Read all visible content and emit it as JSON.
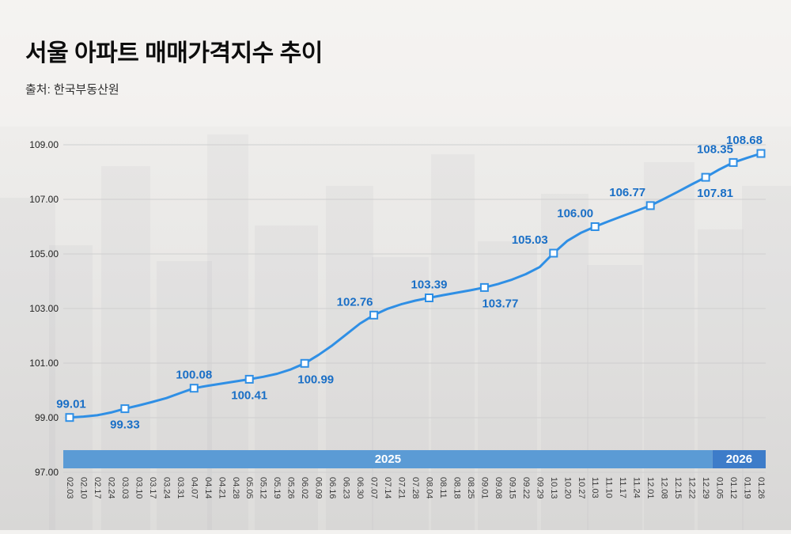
{
  "header": {
    "title": "서울 아파트 매매가격지수 추이",
    "source": "출처: 한국부동산원"
  },
  "chart_data": {
    "type": "line",
    "title": "서울 아파트 매매가격지수 추이",
    "xlabel": "",
    "ylabel": "",
    "ylim": [
      97,
      109
    ],
    "grid": true,
    "legend_position": "none",
    "yticks": [
      97,
      99,
      101,
      103,
      105,
      107,
      109
    ],
    "ytick_labels": [
      "97.00",
      "99.00",
      "101.00",
      "103.00",
      "105.00",
      "107.00",
      "109.00"
    ],
    "x": [
      "02.03",
      "02.10",
      "02.17",
      "02.24",
      "03.03",
      "03.10",
      "03.17",
      "03.24",
      "03.31",
      "04.07",
      "04.14",
      "04.21",
      "04.28",
      "05.05",
      "05.12",
      "05.19",
      "05.26",
      "06.02",
      "06.09",
      "06.16",
      "06.23",
      "06.30",
      "07.07",
      "07.14",
      "07.21",
      "07.28",
      "08.04",
      "08.11",
      "08.18",
      "08.25",
      "09.01",
      "09.08",
      "09.15",
      "09.22",
      "09.29",
      "10.13",
      "10.20",
      "10.27",
      "11.03",
      "11.10",
      "11.17",
      "11.24",
      "12.01",
      "12.08",
      "12.15",
      "12.22",
      "12.29",
      "01.05",
      "01.12",
      "01.19",
      "01.26"
    ],
    "values": [
      99.01,
      99.04,
      99.09,
      99.19,
      99.33,
      99.45,
      99.58,
      99.72,
      99.9,
      100.08,
      100.17,
      100.25,
      100.33,
      100.41,
      100.5,
      100.61,
      100.77,
      100.99,
      101.3,
      101.65,
      102.05,
      102.45,
      102.76,
      102.99,
      103.16,
      103.29,
      103.39,
      103.49,
      103.58,
      103.67,
      103.77,
      103.9,
      104.06,
      104.26,
      104.52,
      105.03,
      105.48,
      105.78,
      106.0,
      106.2,
      106.39,
      106.58,
      106.77,
      107.02,
      107.28,
      107.55,
      107.81,
      108.1,
      108.35,
      108.52,
      108.68
    ],
    "labeled_points": [
      {
        "index": 0,
        "label": "99.01",
        "value": 99.01,
        "position": "above",
        "dx": 2
      },
      {
        "index": 4,
        "label": "99.33",
        "value": 99.33,
        "position": "below",
        "dx": 0
      },
      {
        "index": 9,
        "label": "100.08",
        "value": 100.08,
        "position": "above",
        "dx": 0
      },
      {
        "index": 13,
        "label": "100.41",
        "value": 100.41,
        "position": "below",
        "dx": 0
      },
      {
        "index": 17,
        "label": "100.99",
        "value": 100.99,
        "position": "below",
        "dx": 14
      },
      {
        "index": 22,
        "label": "102.76",
        "value": 102.76,
        "position": "above",
        "dx": -24
      },
      {
        "index": 26,
        "label": "103.39",
        "value": 103.39,
        "position": "above",
        "dx": 0
      },
      {
        "index": 30,
        "label": "103.77",
        "value": 103.77,
        "position": "below",
        "dx": 20
      },
      {
        "index": 35,
        "label": "105.03",
        "value": 105.03,
        "position": "above",
        "dx": -30
      },
      {
        "index": 38,
        "label": "106.00",
        "value": 106.0,
        "position": "above",
        "dx": -25
      },
      {
        "index": 42,
        "label": "106.77",
        "value": 106.77,
        "position": "above",
        "dx": -29
      },
      {
        "index": 46,
        "label": "107.81",
        "value": 107.81,
        "position": "below",
        "dx": 12
      },
      {
        "index": 48,
        "label": "108.35",
        "value": 108.35,
        "position": "above",
        "dx": -23
      },
      {
        "index": 50,
        "label": "108.68",
        "value": 108.68,
        "position": "above",
        "dx": -21
      }
    ],
    "year_bands": [
      {
        "label": "2025",
        "start_date": "02.03",
        "end_date": "12.29",
        "color": "#5b9bd5"
      },
      {
        "label": "2026",
        "start_date": "01.05",
        "end_date": "01.26",
        "color": "#3d7cc9"
      }
    ],
    "colors": {
      "line": "#2f8fe5",
      "label": "#1a6fc6",
      "marker_fill": "#ffffff",
      "grid": "#cfcfcf",
      "band_text": "#ffffff"
    }
  }
}
